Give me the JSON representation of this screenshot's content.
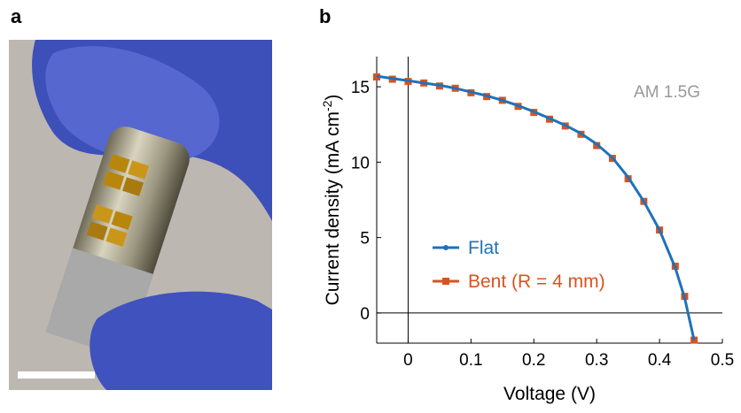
{
  "panel_labels": [
    "a",
    "b"
  ],
  "chart_data": {
    "type": "line",
    "xlabel": "Voltage (V)",
    "ylabel": {
      "text": "Current density (mA cm",
      "superscript": "-2",
      "suffix": ")"
    },
    "annotation": "AM 1.5G",
    "x": [
      -0.05,
      -0.025,
      0,
      0.025,
      0.05,
      0.075,
      0.1,
      0.125,
      0.15,
      0.175,
      0.2,
      0.225,
      0.25,
      0.275,
      0.3,
      0.325,
      0.35,
      0.375,
      0.4,
      0.425,
      0.44,
      0.455
    ],
    "series": [
      {
        "name": "Flat",
        "color": "#1f72b8",
        "marker": "dot",
        "values": [
          15.7,
          15.55,
          15.4,
          15.25,
          15.1,
          14.9,
          14.65,
          14.4,
          14.1,
          13.75,
          13.35,
          12.9,
          12.45,
          11.9,
          11.2,
          10.3,
          9.0,
          7.4,
          5.5,
          3.0,
          1.0,
          -1.8
        ]
      },
      {
        "name": "Bent (R = 4 mm)",
        "color": "#d9531e",
        "marker": "square",
        "values": [
          15.65,
          15.5,
          15.35,
          15.25,
          15.05,
          14.9,
          14.6,
          14.35,
          14.1,
          13.7,
          13.3,
          12.85,
          12.4,
          11.85,
          11.1,
          10.25,
          8.9,
          7.4,
          5.5,
          3.1,
          1.1,
          -1.8
        ]
      }
    ],
    "xlim": [
      -0.05,
      0.5
    ],
    "ylim": [
      -2,
      17
    ],
    "xticks": [
      0,
      0.1,
      0.2,
      0.3,
      0.4,
      0.5
    ],
    "yticks": [
      0,
      5,
      10,
      15
    ],
    "zero_lines": true
  }
}
